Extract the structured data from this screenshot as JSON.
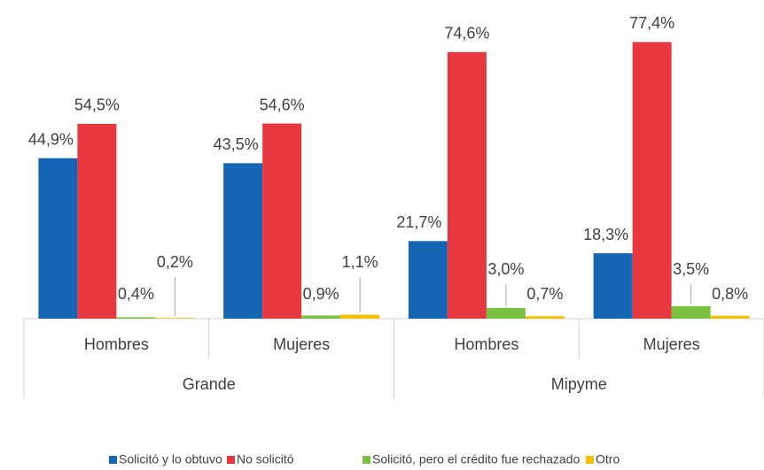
{
  "chart_data": {
    "type": "bar",
    "categories": [
      "Hombres",
      "Mujeres",
      "Hombres",
      "Mujeres"
    ],
    "category_groups": [
      "Grande",
      "Mipyme"
    ],
    "series": [
      {
        "name": "Solicitó y lo obtuvo",
        "color": "#1565b5",
        "values": [
          44.9,
          43.5,
          21.7,
          18.3
        ],
        "value_labels": [
          "44,9%",
          "43,5%",
          "21,7%",
          "18,3%"
        ]
      },
      {
        "name": "No solicitó",
        "color": "#e8383f",
        "values": [
          54.5,
          54.6,
          74.6,
          77.4
        ],
        "value_labels": [
          "54,5%",
          "54,6%",
          "74,6%",
          "77,4%"
        ]
      },
      {
        "name": "Solicitó, pero el crédito fue rechazado",
        "color": "#7cc242",
        "values": [
          0.4,
          0.9,
          3.0,
          3.5
        ],
        "value_labels": [
          "0,4%",
          "0,9%",
          "3,0%",
          "3,5%"
        ]
      },
      {
        "name": "Otro",
        "color": "#f5c000",
        "values": [
          0.2,
          1.1,
          0.7,
          0.8
        ],
        "value_labels": [
          "0,2%",
          "1,1%",
          "0,7%",
          "0,8%"
        ]
      }
    ],
    "ylim": [
      0,
      80
    ],
    "legend": "bottom"
  }
}
